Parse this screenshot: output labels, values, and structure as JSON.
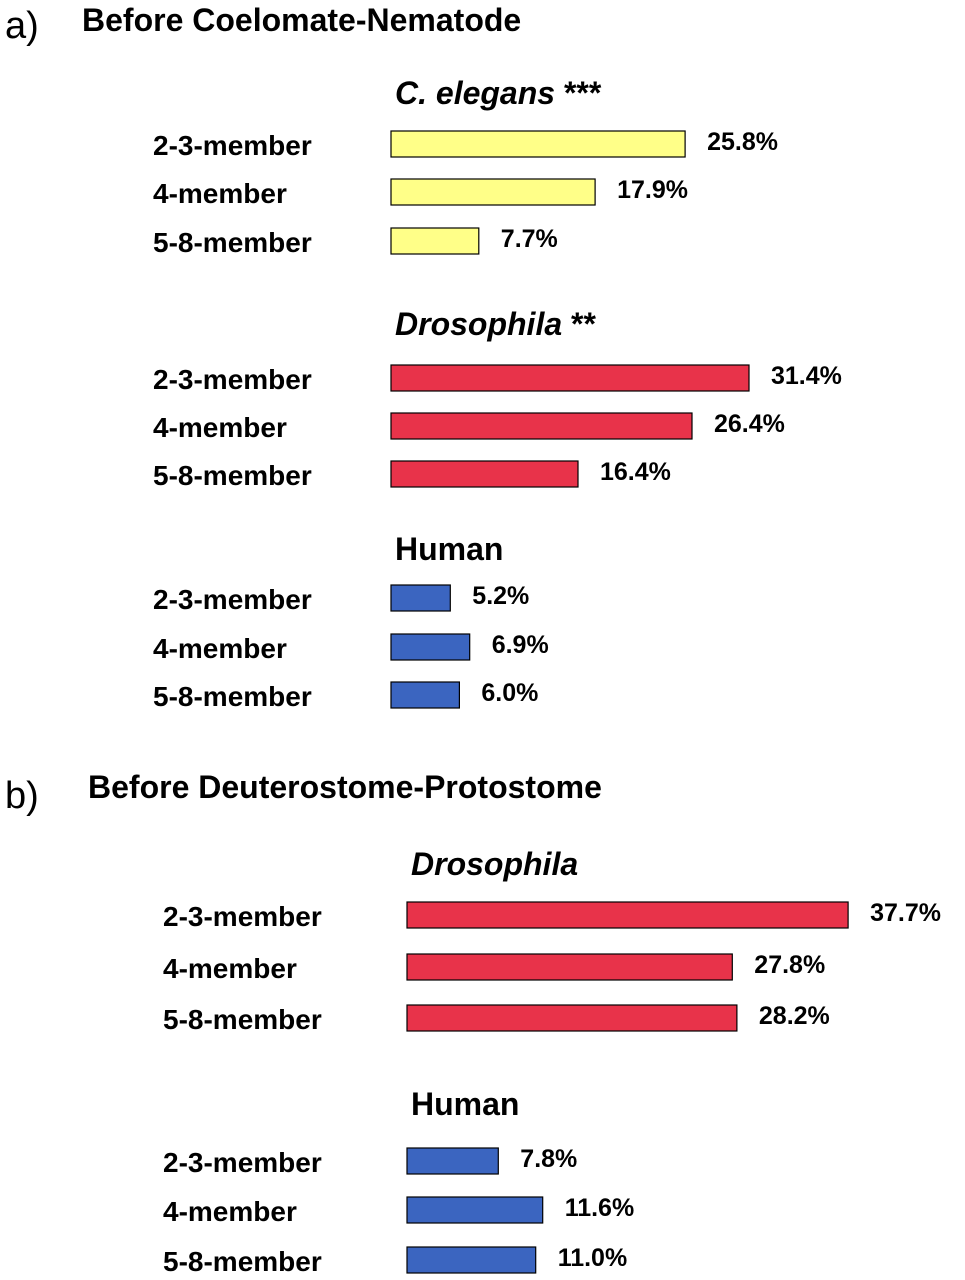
{
  "chart_data": [
    {
      "type": "bar",
      "orientation": "horizontal",
      "panel_letter": "a)",
      "title": "Before Coelomate-Nematode",
      "groups": [
        {
          "name": "C. elegans",
          "marker": "***",
          "color": "#ffff88",
          "categories": [
            "2-3-member",
            "4-member",
            "5-8-member"
          ],
          "values": [
            25.8,
            17.9,
            7.7
          ],
          "labels": [
            "25.8%",
            "17.9%",
            "7.7%"
          ]
        },
        {
          "name": "Drosophila",
          "marker": "**",
          "color": "#e8334a",
          "categories": [
            "2-3-member",
            "4-member",
            "5-8-member"
          ],
          "values": [
            31.4,
            26.4,
            16.4
          ],
          "labels": [
            "31.4%",
            "26.4%",
            "16.4%"
          ]
        },
        {
          "name": "Human",
          "marker": "",
          "color": "#3b65c0",
          "categories": [
            "2-3-member",
            "4-member",
            "5-8-member"
          ],
          "values": [
            5.2,
            6.9,
            6.0
          ],
          "labels": [
            "5.2%",
            "6.9%",
            "6.0%"
          ]
        }
      ]
    },
    {
      "type": "bar",
      "orientation": "horizontal",
      "panel_letter": "b)",
      "title": "Before Deuterostome-Protostome",
      "groups": [
        {
          "name": "Drosophila",
          "marker": "",
          "color": "#e8334a",
          "categories": [
            "2-3-member",
            "4-member",
            "5-8-member"
          ],
          "values": [
            37.7,
            27.8,
            28.2
          ],
          "labels": [
            "37.7%",
            "27.8%",
            "28.2%"
          ]
        },
        {
          "name": "Human",
          "marker": "",
          "color": "#3b65c0",
          "categories": [
            "2-3-member",
            "4-member",
            "5-8-member"
          ],
          "values": [
            7.8,
            11.6,
            11.0
          ],
          "labels": [
            "7.8%",
            "11.6%",
            "11.0%"
          ]
        }
      ]
    }
  ]
}
